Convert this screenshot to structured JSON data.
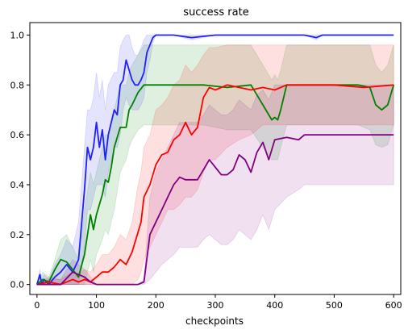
{
  "chart_data": {
    "type": "line",
    "title": "success rate",
    "xlabel": "checkpoints",
    "ylabel": "",
    "xlim": [
      -12,
      612
    ],
    "ylim": [
      -0.04,
      1.05
    ],
    "xticks": [
      0,
      100,
      200,
      300,
      400,
      500,
      600
    ],
    "yticks": [
      0.0,
      0.2,
      0.4,
      0.6,
      0.8,
      1.0
    ],
    "xtick_labels": [
      "0",
      "100",
      "200",
      "300",
      "400",
      "500",
      "600"
    ],
    "ytick_labels": [
      "0.0",
      "0.2",
      "0.4",
      "0.6",
      "0.8",
      "1.0"
    ],
    "grid": false,
    "legend": null,
    "series": [
      {
        "color": "#1f1fff",
        "x": [
          0,
          5,
          8,
          12,
          20,
          30,
          40,
          50,
          60,
          70,
          80,
          85,
          90,
          95,
          100,
          105,
          110,
          115,
          120,
          130,
          135,
          140,
          145,
          150,
          155,
          160,
          165,
          170,
          175,
          180,
          185,
          190,
          195,
          200,
          210,
          230,
          260,
          300,
          350,
          400,
          450,
          470,
          480,
          500,
          550,
          600
        ],
        "y": [
          0,
          0.04,
          0.0,
          0.02,
          0.0,
          0.03,
          0.05,
          0.08,
          0.05,
          0.1,
          0.38,
          0.55,
          0.5,
          0.55,
          0.65,
          0.55,
          0.62,
          0.5,
          0.6,
          0.7,
          0.68,
          0.8,
          0.82,
          0.9,
          0.86,
          0.82,
          0.8,
          0.8,
          0.82,
          0.85,
          0.93,
          0.96,
          0.99,
          1.0,
          1.0,
          1.0,
          0.99,
          1.0,
          1.0,
          1.0,
          1.0,
          0.99,
          1.0,
          1.0,
          1.0,
          1.0
        ],
        "y_low": [
          0,
          0,
          0,
          0,
          0,
          0,
          0,
          0,
          0,
          0,
          0.15,
          0.3,
          0.3,
          0.35,
          0.4,
          0.4,
          0.4,
          0.35,
          0.45,
          0.55,
          0.55,
          0.6,
          0.7,
          0.75,
          0.72,
          0.7,
          0.7,
          0.7,
          0.72,
          0.75,
          0.85,
          0.9,
          0.97,
          1.0,
          1.0,
          1.0,
          0.98,
          1.0,
          1.0,
          1.0,
          1.0,
          0.98,
          1.0,
          1.0,
          1.0,
          1.0
        ],
        "y_high": [
          0,
          0.06,
          0.02,
          0.04,
          0.02,
          0.08,
          0.12,
          0.18,
          0.15,
          0.25,
          0.55,
          0.7,
          0.7,
          0.75,
          0.85,
          0.75,
          0.82,
          0.7,
          0.8,
          0.85,
          0.85,
          0.95,
          0.98,
          1.0,
          1.0,
          0.95,
          0.92,
          0.92,
          0.95,
          0.98,
          1.0,
          1.0,
          1.0,
          1.0,
          1.0,
          1.0,
          1.0,
          1.0,
          1.0,
          1.0,
          1.0,
          1.0,
          1.0,
          1.0,
          1.0,
          1.0
        ]
      },
      {
        "color": "#008000",
        "x": [
          0,
          10,
          20,
          30,
          40,
          50,
          60,
          70,
          80,
          90,
          95,
          100,
          110,
          115,
          120,
          125,
          130,
          140,
          150,
          155,
          160,
          170,
          180,
          190,
          200,
          220,
          250,
          280,
          320,
          360,
          380,
          395,
          400,
          405,
          410,
          420,
          450,
          500,
          540,
          560,
          570,
          580,
          590,
          600
        ],
        "y": [
          0,
          0.02,
          0.01,
          0.06,
          0.1,
          0.09,
          0.06,
          0.03,
          0.12,
          0.28,
          0.22,
          0.28,
          0.36,
          0.42,
          0.41,
          0.47,
          0.55,
          0.63,
          0.63,
          0.7,
          0.72,
          0.77,
          0.8,
          0.8,
          0.8,
          0.8,
          0.8,
          0.8,
          0.79,
          0.8,
          0.72,
          0.66,
          0.67,
          0.66,
          0.7,
          0.8,
          0.8,
          0.8,
          0.8,
          0.79,
          0.72,
          0.7,
          0.72,
          0.8
        ],
        "y_low": [
          0,
          0,
          0,
          0,
          0,
          0,
          0,
          0,
          0,
          0.1,
          0.05,
          0.12,
          0.18,
          0.22,
          0.2,
          0.25,
          0.3,
          0.45,
          0.5,
          0.55,
          0.58,
          0.62,
          0.64,
          0.64,
          0.64,
          0.64,
          0.64,
          0.64,
          0.62,
          0.62,
          0.55,
          0.5,
          0.5,
          0.5,
          0.55,
          0.64,
          0.64,
          0.64,
          0.64,
          0.62,
          0.56,
          0.55,
          0.56,
          0.64
        ],
        "y_high": [
          0,
          0.05,
          0.03,
          0.1,
          0.18,
          0.2,
          0.15,
          0.1,
          0.3,
          0.45,
          0.4,
          0.45,
          0.55,
          0.6,
          0.6,
          0.65,
          0.7,
          0.8,
          0.8,
          0.85,
          0.88,
          0.92,
          0.96,
          0.96,
          0.96,
          0.96,
          0.96,
          0.96,
          0.96,
          0.96,
          0.88,
          0.82,
          0.84,
          0.82,
          0.86,
          0.96,
          0.96,
          0.96,
          0.96,
          0.96,
          0.88,
          0.85,
          0.88,
          0.96
        ]
      },
      {
        "color": "#ff0000",
        "x": [
          0,
          20,
          40,
          60,
          70,
          80,
          90,
          100,
          110,
          120,
          130,
          140,
          150,
          160,
          170,
          175,
          180,
          190,
          200,
          210,
          220,
          230,
          240,
          250,
          260,
          270,
          280,
          290,
          300,
          320,
          340,
          360,
          380,
          400,
          420,
          450,
          500,
          550,
          600
        ],
        "y": [
          0,
          0.01,
          0.0,
          0.02,
          0.01,
          0.02,
          0.01,
          0.03,
          0.05,
          0.05,
          0.07,
          0.1,
          0.08,
          0.13,
          0.21,
          0.25,
          0.35,
          0.4,
          0.48,
          0.52,
          0.53,
          0.58,
          0.6,
          0.65,
          0.6,
          0.63,
          0.75,
          0.79,
          0.78,
          0.8,
          0.79,
          0.78,
          0.79,
          0.78,
          0.8,
          0.8,
          0.8,
          0.79,
          0.8
        ],
        "y_low": [
          0,
          0,
          0,
          0,
          0,
          0,
          0,
          0,
          0,
          0,
          0,
          0,
          0,
          0,
          0.02,
          0.05,
          0.1,
          0.15,
          0.2,
          0.25,
          0.3,
          0.3,
          0.32,
          0.35,
          0.35,
          0.38,
          0.45,
          0.5,
          0.5,
          0.55,
          0.58,
          0.6,
          0.64,
          0.64,
          0.64,
          0.64,
          0.64,
          0.64,
          0.64
        ],
        "y_high": [
          0,
          0.03,
          0.02,
          0.05,
          0.04,
          0.06,
          0.05,
          0.08,
          0.12,
          0.12,
          0.15,
          0.2,
          0.18,
          0.25,
          0.4,
          0.45,
          0.55,
          0.6,
          0.7,
          0.72,
          0.75,
          0.8,
          0.82,
          0.88,
          0.85,
          0.88,
          0.92,
          0.95,
          0.95,
          0.96,
          0.96,
          0.96,
          0.96,
          0.96,
          0.96,
          0.96,
          0.96,
          0.96,
          0.96
        ]
      },
      {
        "color": "#800080",
        "x": [
          0,
          20,
          40,
          60,
          70,
          80,
          90,
          100,
          110,
          130,
          150,
          170,
          180,
          190,
          200,
          210,
          220,
          230,
          240,
          250,
          260,
          270,
          280,
          290,
          300,
          310,
          320,
          330,
          340,
          350,
          360,
          370,
          380,
          390,
          400,
          420,
          440,
          450,
          460,
          480,
          500,
          550,
          600
        ],
        "y": [
          0,
          0.0,
          0.0,
          0.05,
          0.04,
          0.03,
          0.01,
          0.0,
          0.0,
          0.0,
          0.0,
          0.0,
          0.01,
          0.2,
          0.25,
          0.3,
          0.35,
          0.4,
          0.43,
          0.42,
          0.42,
          0.42,
          0.46,
          0.5,
          0.47,
          0.44,
          0.44,
          0.46,
          0.52,
          0.5,
          0.45,
          0.53,
          0.57,
          0.5,
          0.58,
          0.59,
          0.58,
          0.6,
          0.6,
          0.6,
          0.6,
          0.6,
          0.6
        ],
        "y_low": [
          0,
          0,
          0,
          0,
          0,
          0,
          0,
          0,
          0,
          0,
          0,
          0,
          0,
          0.02,
          0.05,
          0.08,
          0.1,
          0.12,
          0.15,
          0.15,
          0.15,
          0.15,
          0.18,
          0.2,
          0.18,
          0.16,
          0.16,
          0.18,
          0.22,
          0.2,
          0.18,
          0.22,
          0.28,
          0.22,
          0.3,
          0.35,
          0.38,
          0.4,
          0.4,
          0.4,
          0.4,
          0.4,
          0.4
        ],
        "y_high": [
          0,
          0.02,
          0.02,
          0.1,
          0.08,
          0.06,
          0.03,
          0.0,
          0.0,
          0.0,
          0.0,
          0.0,
          0.02,
          0.35,
          0.45,
          0.5,
          0.55,
          0.6,
          0.65,
          0.65,
          0.65,
          0.65,
          0.68,
          0.72,
          0.7,
          0.68,
          0.68,
          0.7,
          0.74,
          0.72,
          0.7,
          0.76,
          0.78,
          0.74,
          0.8,
          0.8,
          0.8,
          0.8,
          0.8,
          0.8,
          0.8,
          0.8,
          0.8
        ]
      }
    ]
  }
}
